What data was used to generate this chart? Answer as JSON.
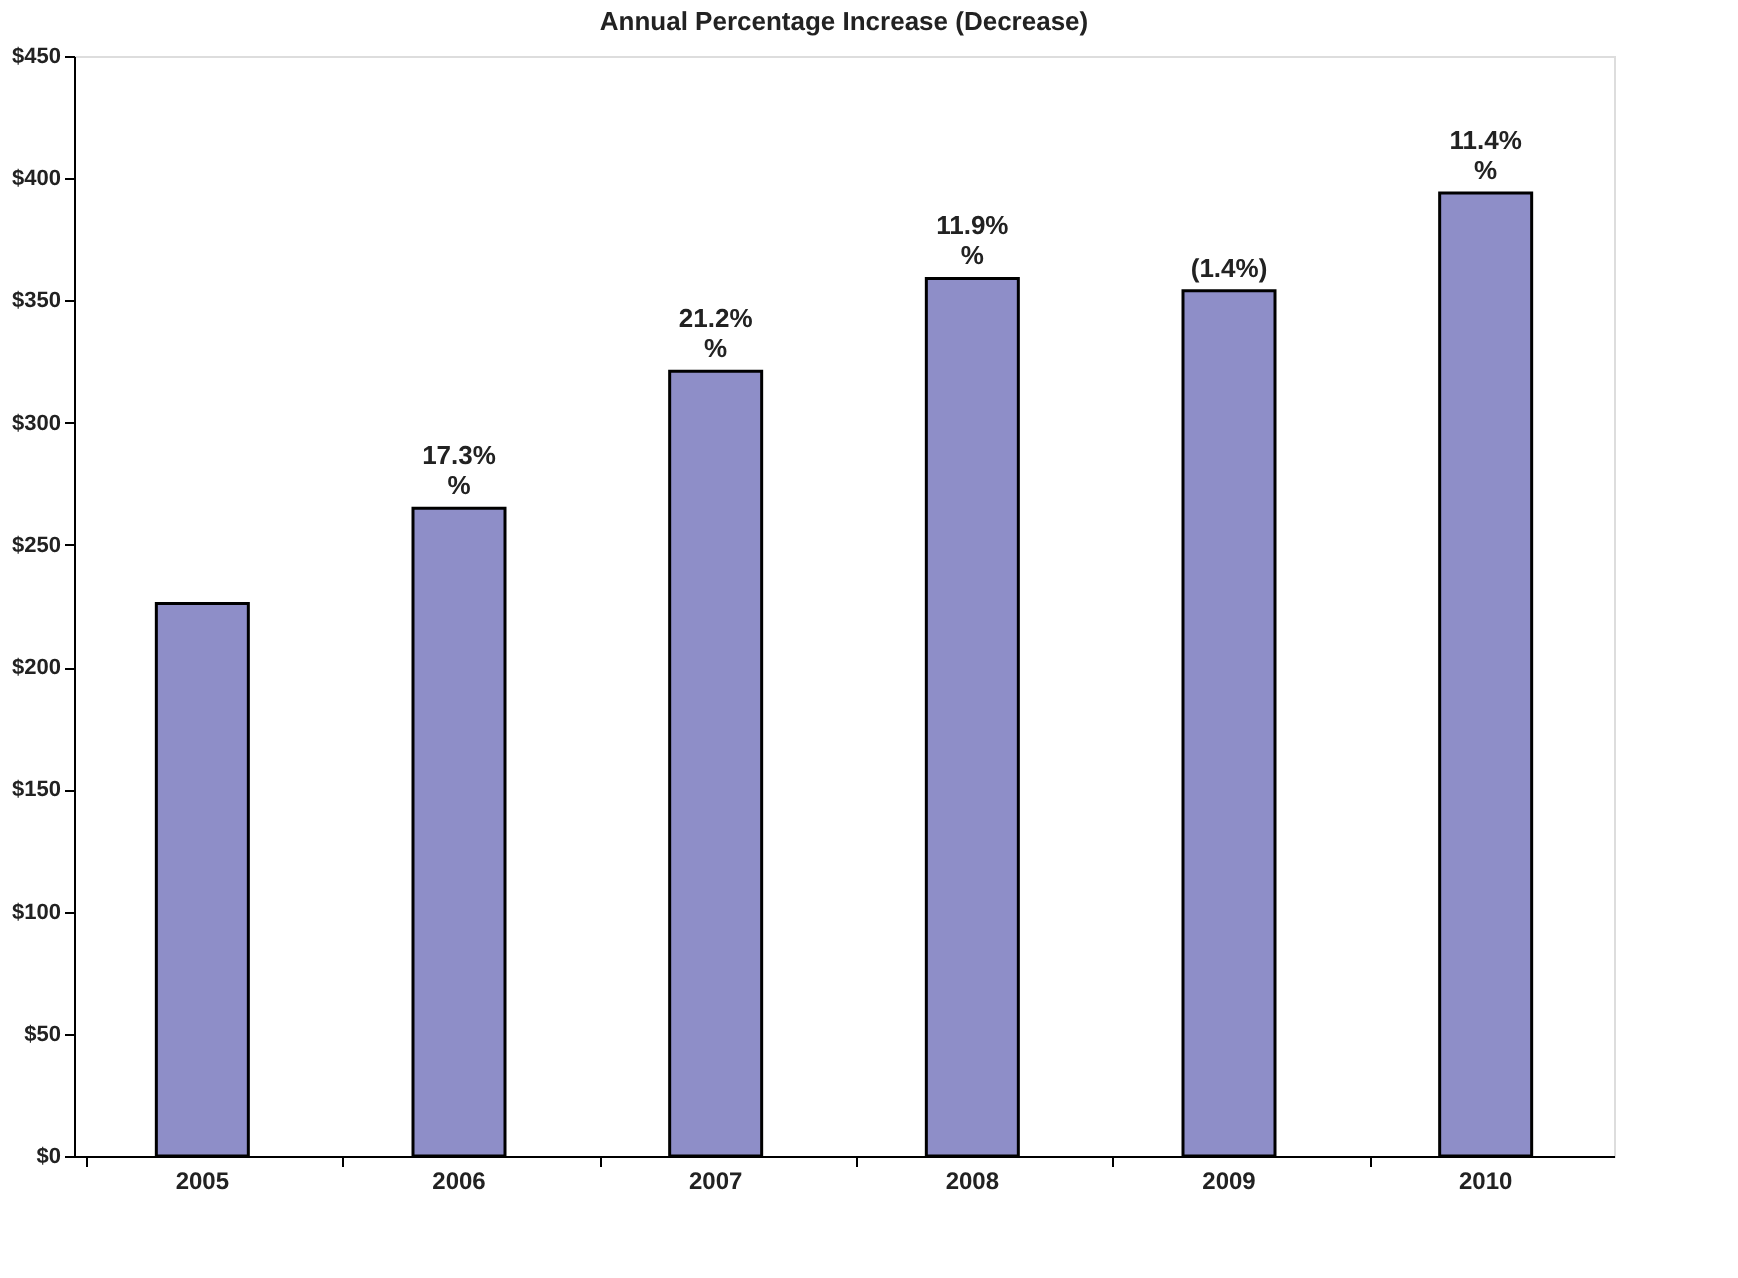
{
  "chart_data": {
    "type": "bar",
    "title": "Annual Percentage Increase (Decrease)",
    "categories": [
      "2005",
      "2006",
      "2007",
      "2008",
      "2009",
      "2010"
    ],
    "values": [
      226,
      265,
      321,
      359,
      354,
      394
    ],
    "color": "#8e8ec8",
    "annotations": [
      {
        "text": "17.3%\n%",
        "x": "2006",
        "y": 265
      },
      {
        "text": "21.2%\n%",
        "x": "2007",
        "y": 321
      },
      {
        "text": "11.9%\n%",
        "x": "2008",
        "y": 359
      },
      {
        "text": "(1.4%)",
        "x": "2009",
        "y": 354
      },
      {
        "text": "11.4%\n%",
        "x": "2010",
        "y": 394
      }
    ],
    "ylim": [
      0,
      450
    ],
    "yticks": [
      {
        "value": 0,
        "label": "$0"
      },
      {
        "value": 50,
        "label": "$50"
      },
      {
        "value": 100,
        "label": "$100"
      },
      {
        "value": 150,
        "label": "$150"
      },
      {
        "value": 200,
        "label": "$200"
      },
      {
        "value": 250,
        "label": "$250"
      },
      {
        "value": 300,
        "label": "$300"
      },
      {
        "value": 350,
        "label": "$350"
      },
      {
        "value": 400,
        "label": "$400"
      },
      {
        "value": 450,
        "label": "$450"
      }
    ],
    "grid": false
  }
}
